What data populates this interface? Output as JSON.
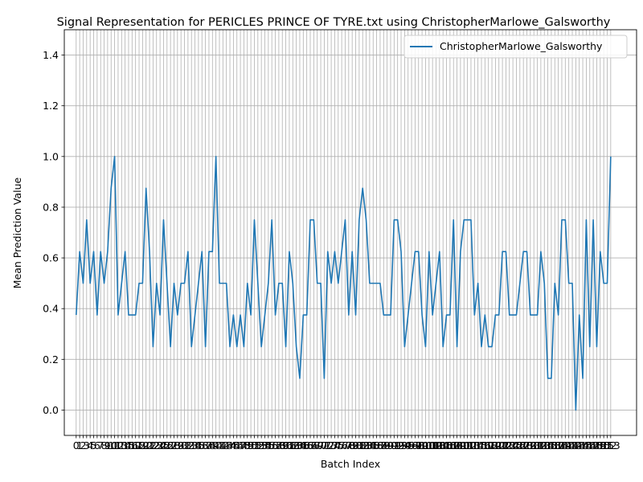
{
  "chart_data": {
    "type": "line",
    "title": "Signal Representation for PERICLES PRINCE OF TYRE.txt using ChristopherMarlowe_Galsworthy",
    "xlabel": "Batch Index",
    "ylabel": "Mean Prediction Value",
    "xlim": [
      -3.4,
      160.4
    ],
    "ylim": [
      -0.1,
      1.5
    ],
    "yticks": [
      0.0,
      0.2,
      0.4,
      0.6,
      0.8,
      1.0,
      1.2,
      1.4
    ],
    "ytick_labels": [
      "0.0",
      "0.2",
      "0.4",
      "0.6",
      "0.8",
      "1.0",
      "1.2",
      "1.4"
    ],
    "grid": true,
    "legend_position": "top-right",
    "series": [
      {
        "name": "ChristopherMarlowe_Galsworthy",
        "color": "#1f77b4",
        "x_start": 0,
        "values": [
          0.375,
          0.625,
          0.5,
          0.75,
          0.5,
          0.625,
          0.375,
          0.625,
          0.5,
          0.625,
          0.875,
          1.0,
          0.375,
          0.5,
          0.625,
          0.375,
          0.375,
          0.375,
          0.5,
          0.5,
          0.875,
          0.625,
          0.25,
          0.5,
          0.375,
          0.75,
          0.5,
          0.25,
          0.5,
          0.375,
          0.5,
          0.5,
          0.625,
          0.25,
          0.375,
          0.5,
          0.625,
          0.25,
          0.625,
          0.625,
          1.0,
          0.5,
          0.5,
          0.5,
          0.25,
          0.375,
          0.25,
          0.375,
          0.25,
          0.5,
          0.375,
          0.75,
          0.5,
          0.25,
          0.375,
          0.5,
          0.75,
          0.375,
          0.5,
          0.5,
          0.25,
          0.625,
          0.5,
          0.25,
          0.125,
          0.375,
          0.375,
          0.75,
          0.75,
          0.5,
          0.5,
          0.125,
          0.625,
          0.5,
          0.625,
          0.5,
          0.625,
          0.75,
          0.375,
          0.625,
          0.375,
          0.75,
          0.875,
          0.75,
          0.5,
          0.5,
          0.5,
          0.5,
          0.375,
          0.375,
          0.375,
          0.75,
          0.75,
          0.625,
          0.25,
          0.375,
          0.5,
          0.625,
          0.625,
          0.375,
          0.25,
          0.625,
          0.375,
          0.5,
          0.625,
          0.25,
          0.375,
          0.375,
          0.75,
          0.25,
          0.625,
          0.75,
          0.75,
          0.75,
          0.375,
          0.5,
          0.25,
          0.375,
          0.25,
          0.25,
          0.375,
          0.375,
          0.625,
          0.625,
          0.375,
          0.375,
          0.375,
          0.5,
          0.625,
          0.625,
          0.375,
          0.375,
          0.375,
          0.625,
          0.5,
          0.125,
          0.125,
          0.5,
          0.375,
          0.75,
          0.75,
          0.5,
          0.5,
          0.0,
          0.375,
          0.125,
          0.75,
          0.25,
          0.75,
          0.25,
          0.625,
          0.5,
          0.5,
          1.0
        ]
      }
    ]
  }
}
